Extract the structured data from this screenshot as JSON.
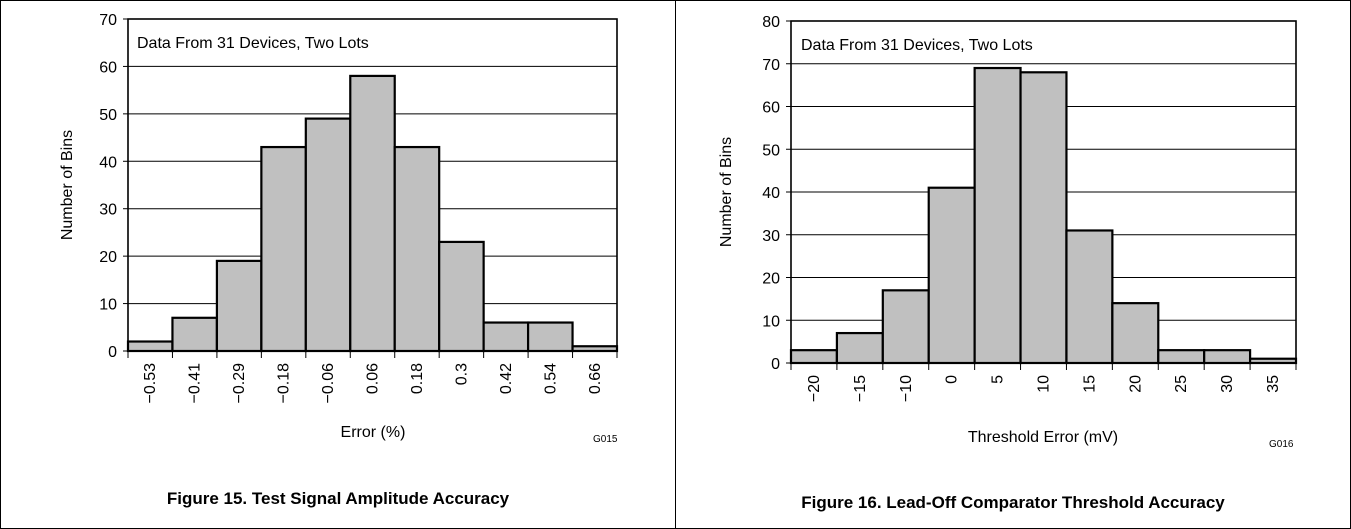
{
  "chart_data": [
    {
      "type": "bar",
      "title": "Figure 15. Test Signal Amplitude Accuracy",
      "annotation": "Data From 31 Devices, Two Lots",
      "xlabel": "Error (%)",
      "ylabel": "Number of Bins",
      "graph_id": "G015",
      "categories": [
        "−0.53",
        "−0.41",
        "−0.29",
        "−0.18",
        "−0.06",
        "0.06",
        "0.18",
        "0.3",
        "0.42",
        "0.54",
        "0.66"
      ],
      "values": [
        2,
        7,
        19,
        43,
        49,
        58,
        43,
        23,
        6,
        6,
        1
      ],
      "ylim": [
        0,
        70
      ],
      "yticks": [
        0,
        10,
        20,
        30,
        40,
        50,
        60,
        70
      ],
      "grid": true,
      "bar_color": "#c0c0c0"
    },
    {
      "type": "bar",
      "title": "Figure 16. Lead-Off Comparator Threshold Accuracy",
      "annotation": "Data From 31 Devices, Two Lots",
      "xlabel": "Threshold Error (mV)",
      "ylabel": "Number of Bins",
      "graph_id": "G016",
      "categories": [
        "−20",
        "−15",
        "−10",
        "0",
        "5",
        "10",
        "15",
        "20",
        "25",
        "30",
        "35"
      ],
      "values": [
        3,
        7,
        17,
        41,
        69,
        68,
        31,
        14,
        3,
        3,
        1
      ],
      "ylim": [
        0,
        80
      ],
      "yticks": [
        0,
        10,
        20,
        30,
        40,
        50,
        60,
        70,
        80
      ],
      "grid": true,
      "bar_color": "#c0c0c0"
    }
  ]
}
